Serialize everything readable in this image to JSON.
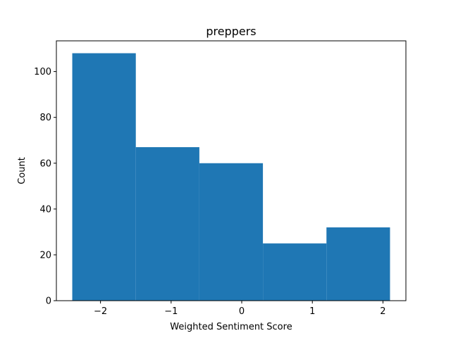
{
  "chart_data": {
    "type": "bar",
    "title": "preppers",
    "xlabel": "Weighted Sentiment Score",
    "ylabel": "Count",
    "bins": [
      {
        "x0": -2.4,
        "x1": -1.5,
        "count": 108
      },
      {
        "x0": -1.5,
        "x1": -0.6,
        "count": 67
      },
      {
        "x0": -0.6,
        "x1": 0.3,
        "count": 60
      },
      {
        "x0": 0.3,
        "x1": 1.2,
        "count": 25
      },
      {
        "x0": 1.2,
        "x1": 2.1,
        "count": 32
      }
    ],
    "xlim": [
      -2.625,
      2.325
    ],
    "ylim": [
      0,
      113.4
    ],
    "xticks": [
      -2,
      -1,
      0,
      1,
      2
    ],
    "xtick_labels": [
      "−2",
      "−1",
      "0",
      "1",
      "2"
    ],
    "yticks": [
      0,
      20,
      40,
      60,
      80,
      100
    ],
    "ytick_labels": [
      "0",
      "20",
      "40",
      "60",
      "80",
      "100"
    ],
    "bar_color": "#1f77b4",
    "grid": false,
    "legend": "none"
  }
}
